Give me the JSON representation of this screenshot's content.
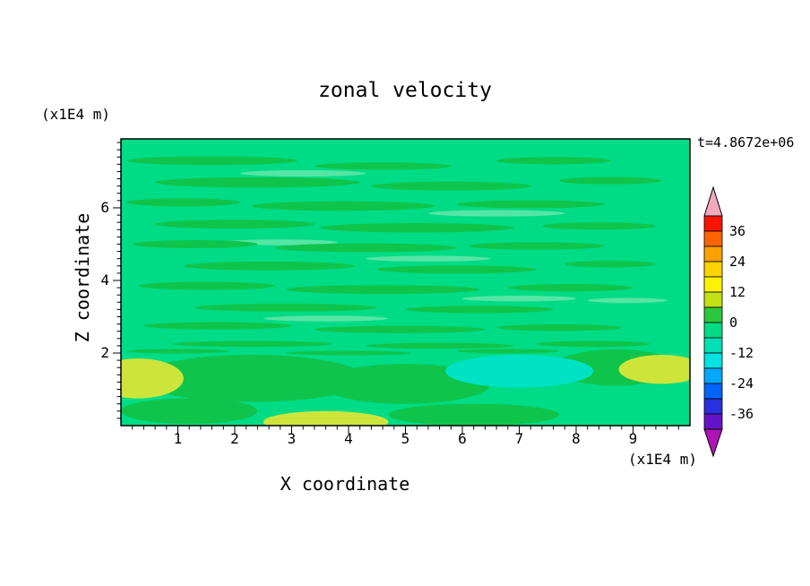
{
  "chart_data": {
    "type": "contour",
    "title": "zonal velocity",
    "time_label": "t=4.8672e+06",
    "x_axis": {
      "label": "X coordinate",
      "unit": "(x1E4 m)",
      "range": [
        0,
        10
      ],
      "tick_values": [
        1,
        2,
        3,
        4,
        5,
        6,
        7,
        8,
        9
      ],
      "tick_labels": [
        "1",
        "2",
        "3",
        "4",
        "5",
        "6",
        "7",
        "8",
        "9"
      ],
      "minor_step": 0.2
    },
    "z_axis": {
      "label": "Z coordinate",
      "unit": "(x1E4 m)",
      "range": [
        0,
        7.9
      ],
      "tick_values": [
        2,
        4,
        6
      ],
      "tick_labels": [
        "2",
        "4",
        "6"
      ],
      "minor_step": 0.2
    },
    "colorbar": {
      "labels": [
        "36",
        "24",
        "12",
        "0",
        "-12",
        "-24",
        "-36"
      ],
      "levels": [
        -42,
        -36,
        -30,
        -24,
        -18,
        -12,
        -6,
        0,
        6,
        12,
        18,
        24,
        30,
        36,
        42
      ],
      "arrow_top_color": "#F2A9BC",
      "arrow_bottom_color": "#AE14B4",
      "band_colors": [
        "#FA1400",
        "#FF6400",
        "#FFA000",
        "#FFD200",
        "#FFF200",
        "#C3E114",
        "#2BC83E",
        "#00DB86",
        "#00E0B4",
        "#00E2E2",
        "#00A8FF",
        "#0064FF",
        "#2830E0",
        "#6414C8"
      ]
    },
    "field": {
      "base_color": "#00DB86",
      "palette": {
        "g": "#0FC44A",
        "lg": "#55E5A4",
        "t": "#00E2C4",
        "y": "#CDE53B"
      },
      "features": [
        [
          1.6,
          7.3,
          1.5,
          0.12,
          "g"
        ],
        [
          4.6,
          7.15,
          1.2,
          0.1,
          "g"
        ],
        [
          7.6,
          7.3,
          1.0,
          0.1,
          "g"
        ],
        [
          3.2,
          6.95,
          1.1,
          0.09,
          "lg"
        ],
        [
          2.4,
          6.7,
          1.8,
          0.14,
          "g"
        ],
        [
          5.8,
          6.6,
          1.4,
          0.12,
          "g"
        ],
        [
          8.6,
          6.75,
          0.9,
          0.1,
          "g"
        ],
        [
          1.1,
          6.15,
          1.0,
          0.11,
          "g"
        ],
        [
          3.9,
          6.05,
          1.6,
          0.13,
          "g"
        ],
        [
          7.2,
          6.1,
          1.3,
          0.11,
          "g"
        ],
        [
          6.6,
          5.85,
          1.2,
          0.09,
          "lg"
        ],
        [
          2.0,
          5.55,
          1.4,
          0.12,
          "g"
        ],
        [
          5.2,
          5.45,
          1.7,
          0.13,
          "g"
        ],
        [
          8.4,
          5.5,
          1.0,
          0.1,
          "g"
        ],
        [
          2.8,
          5.05,
          1.0,
          0.08,
          "lg"
        ],
        [
          1.3,
          5.0,
          1.1,
          0.11,
          "g"
        ],
        [
          4.3,
          4.9,
          1.6,
          0.12,
          "g"
        ],
        [
          7.3,
          4.95,
          1.2,
          0.1,
          "g"
        ],
        [
          5.4,
          4.6,
          1.1,
          0.08,
          "lg"
        ],
        [
          2.6,
          4.4,
          1.5,
          0.12,
          "g"
        ],
        [
          5.9,
          4.3,
          1.4,
          0.11,
          "g"
        ],
        [
          8.6,
          4.45,
          0.8,
          0.09,
          "g"
        ],
        [
          1.5,
          3.85,
          1.2,
          0.11,
          "g"
        ],
        [
          4.6,
          3.75,
          1.7,
          0.12,
          "g"
        ],
        [
          7.9,
          3.8,
          1.1,
          0.1,
          "g"
        ],
        [
          7.0,
          3.5,
          1.0,
          0.08,
          "lg"
        ],
        [
          8.9,
          3.45,
          0.7,
          0.07,
          "lg"
        ],
        [
          2.9,
          3.25,
          1.6,
          0.11,
          "g"
        ],
        [
          6.3,
          3.2,
          1.3,
          0.1,
          "g"
        ],
        [
          3.6,
          2.95,
          1.1,
          0.08,
          "lg"
        ],
        [
          1.7,
          2.75,
          1.3,
          0.1,
          "g"
        ],
        [
          4.9,
          2.65,
          1.5,
          0.1,
          "g"
        ],
        [
          7.7,
          2.7,
          1.1,
          0.09,
          "g"
        ],
        [
          2.3,
          2.25,
          1.4,
          0.08,
          "g"
        ],
        [
          5.6,
          2.2,
          1.3,
          0.08,
          "g"
        ],
        [
          8.3,
          2.25,
          1.0,
          0.08,
          "g"
        ],
        [
          1.0,
          2.05,
          0.9,
          0.06,
          "g"
        ],
        [
          4.0,
          2.0,
          1.1,
          0.06,
          "g"
        ],
        [
          6.8,
          2.05,
          0.9,
          0.06,
          "g"
        ],
        [
          2.3,
          1.3,
          2.0,
          0.65,
          "g"
        ],
        [
          5.0,
          1.15,
          1.5,
          0.55,
          "g"
        ],
        [
          8.7,
          1.6,
          1.1,
          0.5,
          "g"
        ],
        [
          1.2,
          0.4,
          1.2,
          0.35,
          "g"
        ],
        [
          6.2,
          0.3,
          1.5,
          0.3,
          "g"
        ],
        [
          7.0,
          1.5,
          1.3,
          0.45,
          "t"
        ],
        [
          0.3,
          1.3,
          0.8,
          0.55,
          "y"
        ],
        [
          3.6,
          0.1,
          1.1,
          0.3,
          "y"
        ],
        [
          9.5,
          1.55,
          0.75,
          0.4,
          "y"
        ]
      ]
    }
  }
}
